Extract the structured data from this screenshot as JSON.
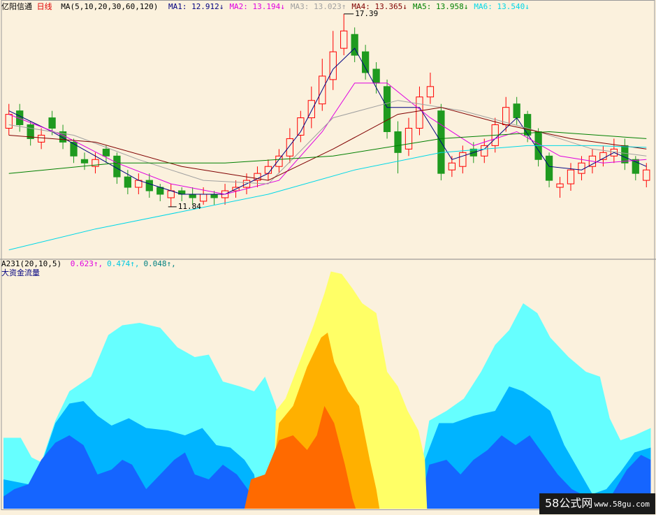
{
  "chart_data": {
    "type": "candlestick",
    "stock_name": "亿阳信通",
    "period": "日线",
    "ma_label": "MA(5,10,20,30,60,120)",
    "xlim": [
      0,
      60
    ],
    "ylim": [
      10.35,
      17.79
    ],
    "up_color": "#ff0000",
    "down_color": "#1f9a1f",
    "candles": {
      "open": [
        14.1,
        14.6,
        14.2,
        13.7,
        14.4,
        14.0,
        13.7,
        13.2,
        13.0,
        13.5,
        13.3,
        12.7,
        12.4,
        12.6,
        12.4,
        12.1,
        12.3,
        12.2,
        12.0,
        12.2,
        12.1,
        12.3,
        12.4,
        12.6,
        12.8,
        13.0,
        13.3,
        13.9,
        14.4,
        14.8,
        15.5,
        16.4,
        16.8,
        16.3,
        15.8,
        15.3,
        14.0,
        13.5,
        14.1,
        15.0,
        14.6,
        12.9,
        13.0,
        13.5,
        13.3,
        13.6,
        14.2,
        14.8,
        14.5,
        14.0,
        13.3,
        12.4,
        12.5,
        12.8,
        13.0,
        13.2,
        13.3,
        13.6,
        13.2,
        12.6
      ],
      "high": [
        14.8,
        14.8,
        14.3,
        14.1,
        14.6,
        14.2,
        13.8,
        13.4,
        13.4,
        13.6,
        13.4,
        12.9,
        12.8,
        12.8,
        12.5,
        12.5,
        12.4,
        12.4,
        12.4,
        12.3,
        12.5,
        12.6,
        12.8,
        13.0,
        13.2,
        13.5,
        14.1,
        14.6,
        15.3,
        16.1,
        16.9,
        17.39,
        17.0,
        16.5,
        16.0,
        15.5,
        14.3,
        14.4,
        15.3,
        15.7,
        14.8,
        13.3,
        13.6,
        13.7,
        13.8,
        14.4,
        15.0,
        15.0,
        14.6,
        14.1,
        13.4,
        12.7,
        13.1,
        13.3,
        13.5,
        13.6,
        13.8,
        13.8,
        13.3,
        13.1
      ],
      "low": [
        13.9,
        14.0,
        13.6,
        13.5,
        13.9,
        13.5,
        13.1,
        12.9,
        12.8,
        13.1,
        12.5,
        12.2,
        12.2,
        12.1,
        12.0,
        11.84,
        12.0,
        11.9,
        11.9,
        11.9,
        11.9,
        12.1,
        12.2,
        12.4,
        12.6,
        12.8,
        13.1,
        13.7,
        14.1,
        14.6,
        15.2,
        16.2,
        16.0,
        15.5,
        15.1,
        13.8,
        12.8,
        13.3,
        13.9,
        14.8,
        12.6,
        12.7,
        12.8,
        13.1,
        13.1,
        13.4,
        14.0,
        14.2,
        13.7,
        13.0,
        12.4,
        12.1,
        12.3,
        12.6,
        12.8,
        13.0,
        13.1,
        12.9,
        12.6,
        12.4
      ],
      "close": [
        14.5,
        14.2,
        13.8,
        13.9,
        14.1,
        13.7,
        13.3,
        13.1,
        13.2,
        13.3,
        12.7,
        12.4,
        12.6,
        12.3,
        12.2,
        12.3,
        12.2,
        12.1,
        12.2,
        12.1,
        12.3,
        12.4,
        12.6,
        12.8,
        13.0,
        13.3,
        13.8,
        14.4,
        14.9,
        15.6,
        16.3,
        16.9,
        16.2,
        15.7,
        15.4,
        14.0,
        13.4,
        14.1,
        15.0,
        15.3,
        12.8,
        13.1,
        13.4,
        13.3,
        13.6,
        14.2,
        14.7,
        14.4,
        13.9,
        13.2,
        12.6,
        12.5,
        12.9,
        13.1,
        13.3,
        13.4,
        13.5,
        13.1,
        12.8,
        12.9
      ]
    },
    "high_mark_index": 31,
    "low_mark_index": 15,
    "series": [
      {
        "name": "MA1: 12.912↓",
        "color": "#000080",
        "x": [
          0.5,
          4.5,
          8.5,
          12.5,
          16.5,
          20.5,
          24.5,
          27.5,
          30.5,
          32.5,
          35.5,
          38.5,
          41.5,
          44.5,
          47.5,
          50.5,
          53.5,
          56.5,
          59.5
        ],
        "values": [
          14.6,
          14.0,
          13.3,
          12.6,
          12.2,
          12.2,
          12.8,
          14.0,
          15.8,
          16.4,
          14.7,
          14.7,
          13.2,
          13.5,
          14.4,
          13.0,
          12.9,
          13.4,
          13.0
        ]
      },
      {
        "name": "MA2: 13.194↓",
        "color": "#e000e0",
        "x": [
          0.5,
          5.5,
          10.5,
          15.5,
          20.5,
          25.5,
          29.5,
          32.5,
          35.5,
          39.5,
          43.5,
          47.5,
          51.5,
          55.5,
          59.5
        ],
        "values": [
          14.5,
          13.9,
          13.1,
          12.5,
          12.2,
          12.6,
          14.0,
          15.4,
          15.4,
          14.4,
          13.6,
          14.0,
          13.3,
          13.1,
          13.2
        ]
      },
      {
        "name": "MA3: 13.023↑",
        "color": "#a0a0a0",
        "x": [
          0.5,
          6.5,
          12.5,
          18.5,
          24.5,
          30.5,
          36.5,
          42.5,
          48.5,
          54.5,
          59.5
        ],
        "values": [
          14.2,
          13.9,
          13.2,
          12.6,
          12.5,
          14.4,
          14.9,
          14.6,
          14.1,
          13.5,
          13.3
        ]
      },
      {
        "name": "MA4: 13.365↓",
        "color": "#800000",
        "x": [
          0.5,
          8.5,
          16.5,
          24.5,
          30.5,
          36.5,
          40.5,
          46.5,
          52.5,
          59.5
        ],
        "values": [
          13.9,
          13.7,
          13.0,
          12.6,
          13.5,
          14.5,
          14.7,
          14.2,
          13.8,
          13.5
        ]
      },
      {
        "name": "MA5: 13.958↓",
        "color": "#008000",
        "x": [
          0.5,
          10.5,
          20.5,
          30.5,
          40.5,
          50.5,
          59.5
        ],
        "values": [
          12.8,
          13.1,
          13.1,
          13.3,
          13.8,
          14.0,
          13.8
        ]
      },
      {
        "name": "MA6: 13.540↓",
        "color": "#00d8e8",
        "x": [
          0.5,
          8.5,
          16.5,
          24.5,
          32.5,
          40.5,
          48.5,
          54.5,
          59.5
        ],
        "values": [
          10.6,
          11.2,
          11.7,
          12.2,
          12.9,
          13.4,
          13.6,
          13.6,
          13.55
        ]
      }
    ],
    "indicator": {
      "type": "area",
      "title": "A231(20,10,5)",
      "subtitle": "大资金流量",
      "ylim": [
        0,
        100
      ],
      "readouts": [
        {
          "text": "0.623↑,",
          "color": "#e000e0"
        },
        {
          "text": "0.474↑,",
          "color": "#00c8e0"
        },
        {
          "text": "0.048↑,",
          "color": "#008080"
        }
      ],
      "layers": [
        {
          "color": "#66ffff",
          "x": [
            0,
            1.6,
            2.6,
            3.5,
            4.8,
            6.1,
            8.1,
            9.7,
            11,
            12.6,
            14.5,
            16.1,
            17.7,
            19,
            20.3,
            21.9,
            23.2,
            24.2,
            25.2,
            25.8,
            26.8,
            38.4,
            39.4,
            41,
            42.6,
            44.2,
            45.5,
            46.8,
            48.1,
            49.4,
            50.6,
            52.3,
            53.9,
            55.2,
            56.1,
            57.1,
            58.4,
            59.9
          ],
          "values": [
            29,
            29,
            21,
            19,
            36,
            48,
            54,
            71,
            75,
            76,
            74,
            66,
            62,
            63,
            52,
            50,
            48,
            54,
            42,
            30,
            10,
            10,
            36,
            40,
            45,
            56,
            67,
            73,
            84,
            80,
            70,
            62,
            56,
            54,
            37,
            28,
            30,
            33
          ]
        },
        {
          "color": "#00b4ff",
          "x": [
            0,
            2.3,
            3.5,
            4.8,
            6.1,
            7.4,
            8.7,
            10,
            11.6,
            13.2,
            15.2,
            16.8,
            18.4,
            19.7,
            21,
            22.3,
            23.2,
            23.7,
            38.4,
            39,
            40.3,
            41.6,
            43.5,
            45.5,
            46.8,
            48.1,
            49.4,
            50.6,
            51.9,
            53.2,
            54.5,
            55.8,
            57.1,
            58.4,
            59.9
          ],
          "values": [
            12,
            10,
            18,
            35,
            43,
            44,
            38,
            34,
            37,
            33,
            32,
            30,
            33,
            26,
            25,
            20,
            14,
            0,
            0,
            20,
            35,
            35,
            38,
            40,
            50,
            48,
            44,
            40,
            26,
            16,
            6,
            8,
            15,
            23,
            25
          ]
        },
        {
          "color": "#1565ff",
          "x": [
            0,
            1,
            2.3,
            3.5,
            4.8,
            6.1,
            7.4,
            8.7,
            10,
            11,
            11.9,
            13.2,
            14.5,
            15.8,
            16.8,
            17.7,
            19,
            20.3,
            21.6,
            22.6,
            23.5,
            38.4,
            39.4,
            41,
            42.3,
            43.5,
            44.8,
            46.1,
            47.4,
            48.7,
            50,
            51.3,
            52.6,
            53.9,
            55.8,
            57.7,
            59,
            59.9
          ],
          "values": [
            5,
            8,
            10,
            20,
            27,
            30,
            26,
            14,
            16,
            20,
            18,
            8,
            14,
            20,
            23,
            14,
            12,
            18,
            14,
            8,
            0,
            0,
            18,
            20,
            14,
            20,
            24,
            30,
            26,
            30,
            22,
            14,
            8,
            5,
            2,
            16,
            22,
            20
          ]
        },
        {
          "color": "#ffff66",
          "x": [
            25,
            25.2,
            26.1,
            27.4,
            28.7,
            29.7,
            30.3,
            31.3,
            32.3,
            33.2,
            34.5,
            35.5,
            36.5,
            37.4,
            38.4,
            39,
            39.2
          ],
          "values": [
            0,
            40,
            45,
            60,
            75,
            88,
            97,
            96,
            90,
            84,
            80,
            56,
            50,
            40,
            32,
            20,
            0
          ]
        },
        {
          "color": "#ffb000",
          "x": [
            24.5,
            25.5,
            26.8,
            28.1,
            29.4,
            30,
            30.6,
            31.9,
            32.9,
            33.9,
            34.5,
            34.8
          ],
          "values": [
            0,
            35,
            42,
            58,
            70,
            72,
            60,
            48,
            42,
            20,
            8,
            0
          ]
        },
        {
          "color": "#ff6a00",
          "x": [
            22.3,
            22.9,
            24.2,
            25.5,
            26.8,
            28.1,
            29,
            29.7,
            30.6,
            31.6,
            32.3,
            32.6
          ],
          "values": [
            0,
            12,
            14,
            28,
            30,
            24,
            30,
            42,
            35,
            18,
            4,
            0
          ]
        }
      ]
    }
  },
  "watermark": {
    "brand": "58公式网",
    "url": "www.58gu.com"
  }
}
